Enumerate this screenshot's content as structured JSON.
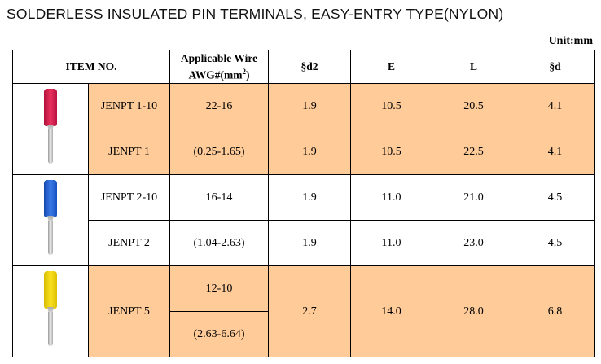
{
  "title": "SOLDERLESS INSULATED PIN TERMINALS, EASY-ENTRY TYPE(NYLON)",
  "unit": "Unit:mm",
  "headers": {
    "item": "ITEM NO.",
    "wire_line1": "Applicable Wire",
    "wire_line2": "AWG#(mm",
    "wire_sup": "2",
    "wire_end": ")",
    "d2": "§d2",
    "e": "E",
    "l": "L",
    "d": "§d"
  },
  "colors": {
    "highlight": "#FFCC99",
    "red_pin": "#d81e4a",
    "blue_pin": "#1e5fd0",
    "yellow_pin": "#f2d600"
  },
  "groups": [
    {
      "pin_color": "red",
      "rows": [
        {
          "item": "JENPT 1-10",
          "awg": "22-16",
          "d2": "1.9",
          "e": "10.5",
          "l": "20.5",
          "d": "4.1"
        },
        {
          "item": "JENPT 1",
          "awg": "(0.25-1.65)",
          "d2": "1.9",
          "e": "10.5",
          "l": "22.5",
          "d": "4.1"
        }
      ]
    },
    {
      "pin_color": "blue",
      "rows": [
        {
          "item": "JENPT 2-10",
          "awg": "16-14",
          "d2": "1.9",
          "e": "11.0",
          "l": "21.0",
          "d": "4.5"
        },
        {
          "item": "JENPT 2",
          "awg": "(1.04-2.63)",
          "d2": "1.9",
          "e": "11.0",
          "l": "23.0",
          "d": "4.5"
        }
      ]
    },
    {
      "pin_color": "yellow",
      "rows": [
        {
          "item": "JENPT 5",
          "awg": "12-10",
          "awg2": "(2.63-6.64)",
          "d2": "2.7",
          "e": "14.0",
          "l": "28.0",
          "d": "6.8"
        }
      ]
    }
  ]
}
